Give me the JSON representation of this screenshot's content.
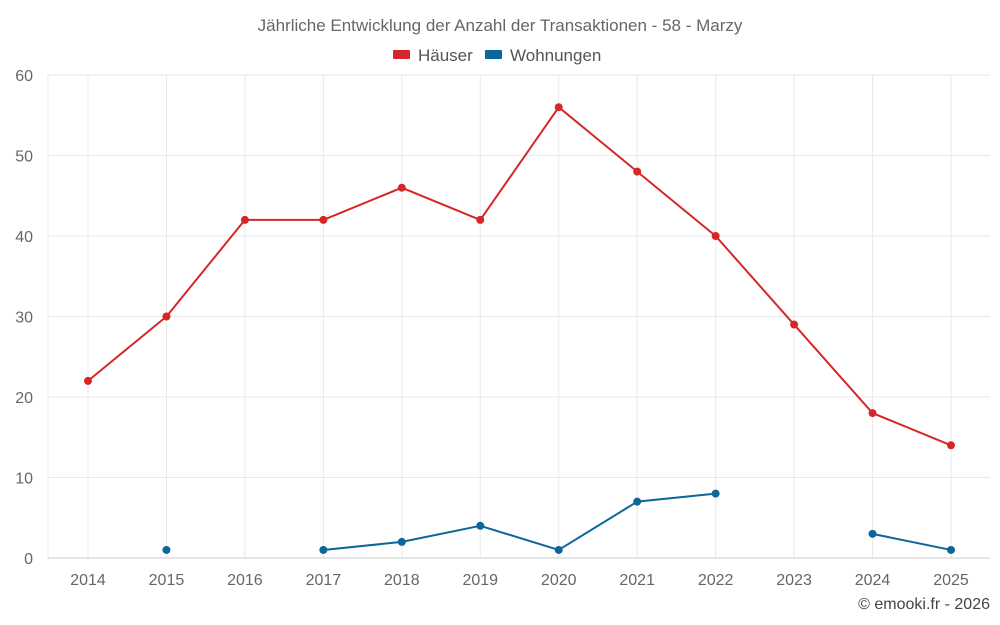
{
  "chart_data": {
    "type": "line",
    "title": "Jährliche Entwicklung der Anzahl der Transaktionen - 58 - Marzy",
    "xlabel": "",
    "ylabel": "",
    "categories": [
      "2014",
      "2015",
      "2016",
      "2017",
      "2018",
      "2019",
      "2020",
      "2021",
      "2022",
      "2023",
      "2024",
      "2025"
    ],
    "ylim": [
      0,
      60
    ],
    "yticks": [
      "0",
      "10",
      "20",
      "30",
      "40",
      "50",
      "60"
    ],
    "grid": true,
    "legend_position": "top-center",
    "series": [
      {
        "name": "Häuser",
        "color": "#d62728",
        "values": [
          22,
          30,
          42,
          42,
          46,
          42,
          56,
          48,
          40,
          29,
          18,
          14
        ]
      },
      {
        "name": "Wohnungen",
        "color": "#0b6699",
        "values": [
          null,
          1,
          null,
          1,
          2,
          4,
          1,
          7,
          8,
          null,
          3,
          1
        ]
      }
    ]
  },
  "credit": "© emooki.fr - 2026"
}
